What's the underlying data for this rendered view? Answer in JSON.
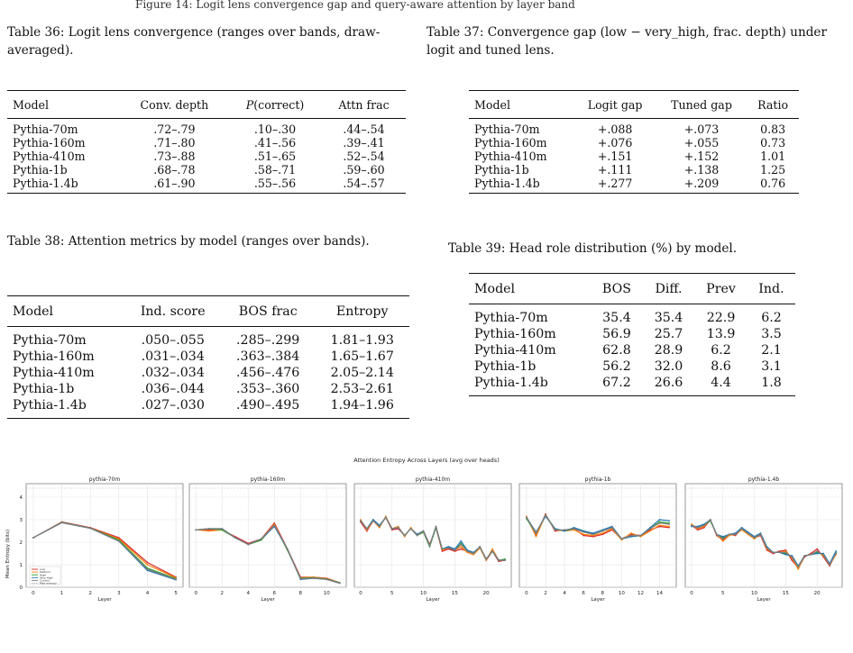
{
  "top_fragment": "Figure 14: Logit lens convergence gap and query-aware attention by layer band",
  "table36": {
    "caption": "Table 36:  Logit lens convergence (ranges over bands, draw-averaged).",
    "headers": [
      "Model",
      "Conv. depth",
      "P(correct)",
      "Attn frac"
    ],
    "rows": [
      [
        "Pythia-70m",
        ".72–.79",
        ".10–.30",
        ".44–.54"
      ],
      [
        "Pythia-160m",
        ".71–.80",
        ".41–.56",
        ".39–.41"
      ],
      [
        "Pythia-410m",
        ".73–.88",
        ".51–.65",
        ".52–.54"
      ],
      [
        "Pythia-1b",
        ".68–.78",
        ".58–.71",
        ".59–.60"
      ],
      [
        "Pythia-1.4b",
        ".61–.90",
        ".55–.56",
        ".54–.57"
      ]
    ]
  },
  "table37": {
    "caption": "Table 37: Convergence gap (low − very_high, frac. depth) under logit and tuned lens.",
    "headers": [
      "Model",
      "Logit gap",
      "Tuned gap",
      "Ratio"
    ],
    "rows": [
      [
        "Pythia-70m",
        "+.088",
        "+.073",
        "0.83"
      ],
      [
        "Pythia-160m",
        "+.076",
        "+.055",
        "0.73"
      ],
      [
        "Pythia-410m",
        "+.151",
        "+.152",
        "1.01"
      ],
      [
        "Pythia-1b",
        "+.111",
        "+.138",
        "1.25"
      ],
      [
        "Pythia-1.4b",
        "+.277",
        "+.209",
        "0.76"
      ]
    ]
  },
  "table38": {
    "caption": "Table 38: Attention metrics by model (ranges over bands).",
    "headers": [
      "Model",
      "Ind. score",
      "BOS frac",
      "Entropy"
    ],
    "rows": [
      [
        "Pythia-70m",
        ".050–.055",
        ".285–.299",
        "1.81–1.93"
      ],
      [
        "Pythia-160m",
        ".031–.034",
        ".363–.384",
        "1.65–1.67"
      ],
      [
        "Pythia-410m",
        ".032–.034",
        ".456–.476",
        "2.05–2.14"
      ],
      [
        "Pythia-1b",
        ".036–.044",
        ".353–.360",
        "2.53–2.61"
      ],
      [
        "Pythia-1.4b",
        ".027–.030",
        ".490–.495",
        "1.94–1.96"
      ]
    ]
  },
  "table39": {
    "caption": "Table 39: Head role distribution (%) by model.",
    "headers": [
      "Model",
      "BOS",
      "Diff.",
      "Prev",
      "Ind."
    ],
    "rows": [
      [
        "Pythia-70m",
        "35.4",
        "35.4",
        "22.9",
        "6.2"
      ],
      [
        "Pythia-160m",
        "56.9",
        "25.7",
        "13.9",
        "3.5"
      ],
      [
        "Pythia-410m",
        "62.8",
        "28.9",
        "6.2",
        "2.1"
      ],
      [
        "Pythia-1b",
        "56.2",
        "32.0",
        "8.6",
        "3.1"
      ],
      [
        "Pythia-1.4b",
        "67.2",
        "26.6",
        "4.4",
        "1.8"
      ]
    ]
  },
  "chart_data": {
    "type": "line",
    "title": "Attention Entropy Across Layers (avg over heads)",
    "ylabel": "Mean Entropy (bits)",
    "xlabel": "Layer",
    "ylim": [
      0,
      4.6
    ],
    "max_entropy": 4.4,
    "grid": true,
    "legend_placement": "lower-left (first panel)",
    "legend": [
      "Low",
      "Medium",
      "High",
      "Very High",
      "Control",
      "Max entropy"
    ],
    "series_colors": [
      "#d62728",
      "#ff7f0e",
      "#2ca02c",
      "#1f77b4",
      "#7f7f7f"
    ],
    "panels": [
      {
        "title": "pythia-70m",
        "xlim": [
          -0.25,
          5.25
        ],
        "xticks": [
          0,
          1,
          2,
          3,
          4,
          5
        ],
        "yticks": [
          0,
          1,
          2,
          3,
          4
        ],
        "series": [
          {
            "name": "Low",
            "values": [
              2.2,
              2.9,
              2.65,
              2.2,
              1.1,
              0.45
            ]
          },
          {
            "name": "Medium",
            "values": [
              2.2,
              2.88,
              2.63,
              2.15,
              1.0,
              0.42
            ]
          },
          {
            "name": "High",
            "values": [
              2.2,
              2.88,
              2.63,
              2.1,
              0.85,
              0.38
            ]
          },
          {
            "name": "Very High",
            "values": [
              2.2,
              2.87,
              2.62,
              2.05,
              0.75,
              0.33
            ]
          },
          {
            "name": "Control",
            "values": [
              2.2,
              2.87,
              2.62,
              2.05,
              0.8,
              0.35
            ]
          }
        ]
      },
      {
        "title": "pythia-160m",
        "xlim": [
          -0.5,
          11.5
        ],
        "xticks": [
          0,
          2,
          4,
          6,
          8,
          10
        ],
        "series": [
          {
            "name": "Low",
            "values": [
              2.55,
              2.55,
              2.55,
              2.25,
              1.95,
              2.15,
              2.85,
              1.7,
              0.45,
              0.45,
              0.4,
              0.2
            ]
          },
          {
            "name": "Medium",
            "values": [
              2.55,
              2.5,
              2.55,
              2.2,
              1.9,
              2.1,
              2.8,
              1.65,
              0.42,
              0.45,
              0.38,
              0.2
            ]
          },
          {
            "name": "High",
            "values": [
              2.55,
              2.6,
              2.55,
              2.2,
              1.9,
              2.1,
              2.75,
              1.65,
              0.4,
              0.42,
              0.36,
              0.2
            ]
          },
          {
            "name": "Very High",
            "values": [
              2.55,
              2.6,
              2.6,
              2.2,
              1.9,
              2.15,
              2.7,
              1.7,
              0.35,
              0.4,
              0.35,
              0.18
            ]
          },
          {
            "name": "Control",
            "values": [
              2.55,
              2.6,
              2.6,
              2.2,
              1.9,
              2.15,
              2.75,
              1.7,
              0.38,
              0.4,
              0.35,
              0.18
            ]
          }
        ]
      },
      {
        "title": "pythia-410m",
        "xlim": [
          -1,
          24
        ],
        "xticks": [
          0,
          5,
          10,
          15,
          20
        ],
        "series": [
          {
            "name": "Low",
            "values": [
              2.9,
              2.5,
              2.95,
              2.7,
              3.1,
              2.55,
              2.6,
              2.3,
              2.6,
              2.35,
              2.5,
              1.9,
              2.65,
              1.6,
              1.7,
              1.6,
              1.7,
              1.6,
              1.5,
              1.8,
              1.2,
              1.6,
              1.15,
              1.2
            ]
          },
          {
            "name": "Medium",
            "values": [
              3.0,
              2.55,
              2.95,
              2.65,
              3.15,
              2.6,
              2.7,
              2.25,
              2.65,
              2.3,
              2.45,
              1.85,
              2.7,
              1.65,
              1.75,
              1.65,
              1.8,
              1.55,
              1.45,
              1.75,
              1.2,
              1.7,
              1.2,
              1.2
            ]
          },
          {
            "name": "High",
            "values": [
              2.95,
              2.6,
              3.0,
              2.7,
              3.1,
              2.6,
              2.65,
              2.3,
              2.6,
              2.3,
              2.45,
              1.8,
              2.65,
              1.7,
              1.8,
              1.65,
              1.95,
              1.6,
              1.5,
              1.8,
              1.25,
              1.6,
              1.2,
              1.25
            ]
          },
          {
            "name": "Very High",
            "values": [
              2.95,
              2.6,
              3.0,
              2.75,
              3.1,
              2.6,
              2.65,
              2.3,
              2.6,
              2.35,
              2.5,
              1.85,
              2.7,
              1.7,
              1.8,
              1.7,
              2.05,
              1.65,
              1.55,
              1.8,
              1.25,
              1.6,
              1.2,
              1.2
            ]
          },
          {
            "name": "Control",
            "values": [
              2.95,
              2.6,
              2.95,
              2.7,
              3.1,
              2.6,
              2.65,
              2.3,
              2.6,
              2.3,
              2.5,
              1.85,
              2.7,
              1.7,
              1.75,
              1.65,
              1.9,
              1.6,
              1.5,
              1.8,
              1.25,
              1.6,
              1.2,
              1.2
            ]
          }
        ]
      },
      {
        "title": "pythia-1b",
        "xlim": [
          -0.75,
          15.75
        ],
        "xticks": [
          0,
          2,
          4,
          6,
          8,
          10,
          12,
          14
        ],
        "series": [
          {
            "name": "Low",
            "values": [
              3.1,
              2.3,
              3.25,
              2.5,
              2.55,
              2.6,
              2.3,
              2.25,
              2.35,
              2.55,
              2.15,
              2.35,
              2.3,
              2.55,
              2.7,
              2.65
            ]
          },
          {
            "name": "Medium",
            "values": [
              3.15,
              2.25,
              3.2,
              2.55,
              2.5,
              2.55,
              2.35,
              2.3,
              2.4,
              2.6,
              2.1,
              2.4,
              2.25,
              2.5,
              2.75,
              2.7
            ]
          },
          {
            "name": "High",
            "values": [
              3.05,
              2.4,
              3.2,
              2.6,
              2.5,
              2.6,
              2.5,
              2.35,
              2.5,
              2.65,
              2.15,
              2.25,
              2.3,
              2.6,
              2.9,
              2.85
            ]
          },
          {
            "name": "Very High",
            "values": [
              3.1,
              2.45,
              3.15,
              2.6,
              2.5,
              2.65,
              2.5,
              2.4,
              2.55,
              2.7,
              2.15,
              2.25,
              2.3,
              2.65,
              3.0,
              2.95
            ]
          },
          {
            "name": "Control",
            "values": [
              3.1,
              2.4,
              3.2,
              2.55,
              2.55,
              2.6,
              2.45,
              2.35,
              2.5,
              2.65,
              2.15,
              2.3,
              2.3,
              2.6,
              2.85,
              2.8
            ]
          }
        ]
      },
      {
        "title": "pythia-1.4b",
        "xlim": [
          -1,
          24
        ],
        "xticks": [
          0,
          5,
          10,
          15,
          20
        ],
        "series": [
          {
            "name": "Low",
            "values": [
              2.75,
              2.55,
              2.65,
              3.0,
              2.3,
              2.1,
              2.35,
              2.3,
              2.6,
              2.4,
              2.2,
              2.3,
              1.65,
              1.5,
              1.6,
              1.65,
              1.2,
              0.85,
              1.35,
              1.5,
              1.7,
              1.35,
              0.95,
              1.5
            ]
          },
          {
            "name": "Medium",
            "values": [
              2.8,
              2.6,
              2.7,
              3.0,
              2.35,
              2.05,
              2.3,
              2.35,
              2.55,
              2.35,
              2.15,
              2.35,
              1.7,
              1.55,
              1.55,
              1.6,
              1.3,
              0.8,
              1.4,
              1.45,
              1.6,
              1.4,
              1.0,
              1.45
            ]
          },
          {
            "name": "High",
            "values": [
              2.75,
              2.65,
              2.75,
              2.95,
              2.35,
              2.2,
              2.35,
              2.35,
              2.6,
              2.4,
              2.2,
              2.35,
              1.75,
              1.55,
              1.55,
              1.5,
              1.35,
              0.9,
              1.4,
              1.45,
              1.55,
              1.45,
              1.0,
              1.55
            ]
          },
          {
            "name": "Very High",
            "values": [
              2.7,
              2.7,
              2.8,
              3.0,
              2.35,
              2.25,
              2.35,
              2.4,
              2.65,
              2.45,
              2.25,
              2.4,
              1.8,
              1.55,
              1.55,
              1.45,
              1.4,
              0.95,
              1.4,
              1.45,
              1.5,
              1.5,
              1.05,
              1.6
            ]
          },
          {
            "name": "Control",
            "values": [
              2.75,
              2.65,
              2.75,
              3.0,
              2.35,
              2.15,
              2.35,
              2.35,
              2.6,
              2.4,
              2.2,
              2.35,
              1.75,
              1.55,
              1.55,
              1.55,
              1.35,
              0.9,
              1.4,
              1.45,
              1.6,
              1.45,
              1.0,
              1.5
            ]
          }
        ]
      }
    ]
  }
}
